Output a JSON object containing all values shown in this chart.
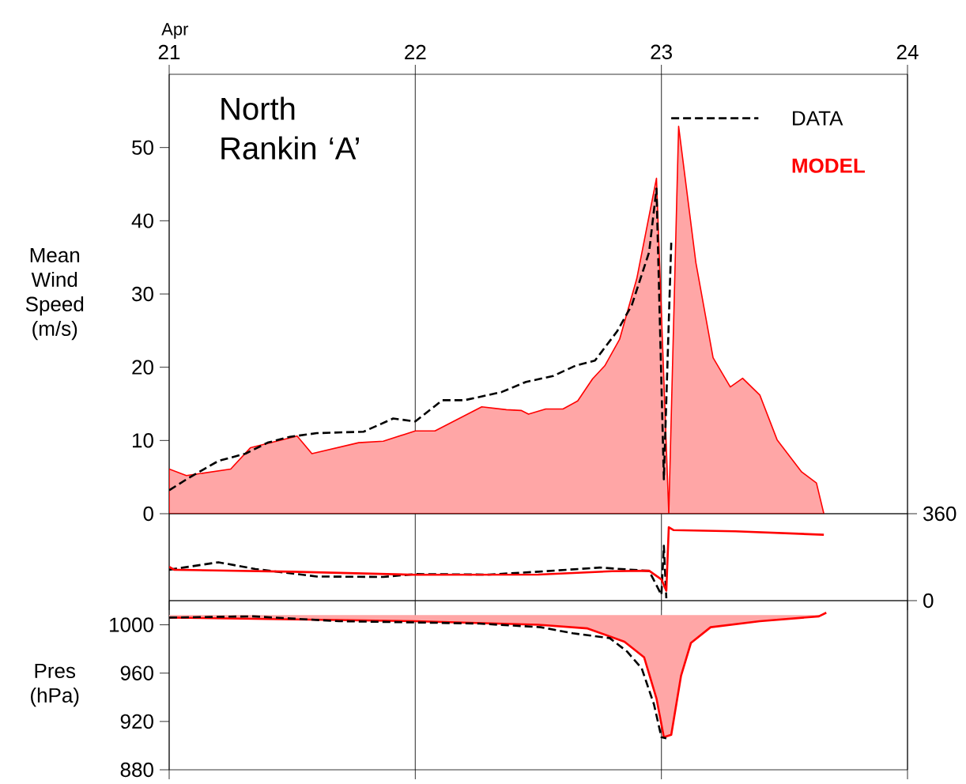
{
  "chart_data": [
    {
      "type": "line",
      "title": "North Rankin ‘A’",
      "xlabel": "Apr",
      "ylabel": "Mean Wind Speed (m/s)",
      "xlim": [
        21,
        24
      ],
      "xticks": [
        21,
        22,
        23,
        24
      ],
      "ylim": [
        0,
        60
      ],
      "yticks": [
        0,
        10,
        20,
        30,
        40,
        50
      ],
      "grid": "x",
      "legend": "top right",
      "series": [
        {
          "name": "DATA",
          "color": "#000000",
          "line_style": "dashed",
          "x": [
            21.0,
            21.08,
            21.2,
            21.31,
            21.4,
            21.49,
            21.6,
            21.79,
            21.91,
            22.0,
            22.11,
            22.2,
            22.35,
            22.45,
            22.56,
            22.65,
            22.73,
            22.82,
            22.88,
            22.95,
            22.98,
            23.01,
            23.04
          ],
          "values": [
            3.2,
            4.9,
            7.2,
            8.2,
            9.7,
            10.5,
            11.0,
            11.2,
            13.0,
            12.6,
            15.5,
            15.5,
            16.6,
            18.0,
            18.8,
            20.2,
            20.9,
            24.9,
            28.5,
            35.7,
            44.4,
            4.7,
            37
          ]
        },
        {
          "name": "MODEL",
          "type": "area",
          "color": "#ff0000",
          "x": [
            21.0,
            21.07,
            21.25,
            21.33,
            21.52,
            21.58,
            21.77,
            21.87,
            22.0,
            22.08,
            22.27,
            22.37,
            22.43,
            22.46,
            22.53,
            22.6,
            22.66,
            22.72,
            22.77,
            22.83,
            22.9,
            22.98,
            23.03,
            23.07,
            23.14,
            23.21,
            23.28,
            23.33,
            23.4,
            23.47,
            23.57,
            23.63,
            23.66
          ],
          "values": [
            6.1,
            5.2,
            6.1,
            9.0,
            10.6,
            8.2,
            9.7,
            9.9,
            11.3,
            11.3,
            14.6,
            14.2,
            14.1,
            13.6,
            14.3,
            14.3,
            15.4,
            18.4,
            20.2,
            23.8,
            32.1,
            45.8,
            0,
            52.9,
            34.3,
            21.3,
            17.3,
            18.5,
            16.2,
            10.1,
            5.7,
            4.2,
            0
          ]
        }
      ]
    },
    {
      "type": "line",
      "xlim": [
        21,
        24
      ],
      "xticks": [
        21,
        22,
        23,
        24
      ],
      "y2lim": [
        0,
        360
      ],
      "y2ticks": [
        0,
        360
      ],
      "grid": "x",
      "tick_labels": "y",
      "series": [
        {
          "color": "#000000",
          "line_style": "dashed",
          "axis": "y2",
          "x": [
            21.0,
            21.2,
            21.35,
            21.6,
            21.87,
            22.0,
            22.3,
            22.5,
            22.75,
            22.95,
            23.0,
            23.01,
            23.02
          ],
          "values": [
            128,
            159,
            131,
            100,
            98,
            110,
            108,
            120,
            137,
            123,
            24,
            227,
            10
          ]
        },
        {
          "color": "#ff0000",
          "axis": "y2",
          "x": [
            21.0,
            21.02,
            21.5,
            22.0,
            22.5,
            22.8,
            22.95,
            23.0,
            23.02,
            23.03,
            23.05,
            23.3,
            23.66
          ],
          "values": [
            140,
            128,
            120,
            107,
            108,
            122,
            124,
            88,
            41,
            304,
            292,
            287,
            273
          ]
        }
      ]
    },
    {
      "type": "line",
      "ylabel": "Pres (hPa)",
      "xlim": [
        21,
        24
      ],
      "xticks": [
        21,
        22,
        23,
        24
      ],
      "ylim": [
        880,
        1020
      ],
      "yticks": [
        880,
        920,
        960,
        1000
      ],
      "grid": "x",
      "tick_labels": "y",
      "series": [
        {
          "color": "#000000",
          "line_style": "dashed",
          "x": [
            21.0,
            21.34,
            21.69,
            22.0,
            22.26,
            22.51,
            22.64,
            22.79,
            22.86,
            22.92,
            22.97,
            23.0,
            23.02
          ],
          "values": [
            1006,
            1007,
            1003,
            1002,
            1001,
            998,
            993,
            989,
            978,
            964,
            934,
            907,
            906
          ]
        },
        {
          "color": "#ff0000",
          "x": [
            21.0,
            22.0,
            22.5,
            22.7,
            22.85,
            22.93,
            22.98,
            23.01,
            23.04,
            23.08,
            23.12,
            23.2,
            23.4,
            23.64,
            23.67
          ],
          "values": [
            1006,
            1003,
            1000,
            997,
            986,
            973,
            939,
            907,
            909,
            958,
            985,
            998,
            1003,
            1007,
            1010
          ],
          "upper": [
            1008,
            1008,
            1008,
            1008,
            1008,
            1008,
            1008,
            1008,
            1008,
            1008,
            1008,
            1008,
            1008,
            1008,
            1010
          ],
          "lower": [
            1006,
            1003,
            1000,
            997,
            986,
            973,
            939,
            907,
            909,
            958,
            985,
            998,
            1003,
            1007,
            1010
          ]
        }
      ]
    }
  ]
}
